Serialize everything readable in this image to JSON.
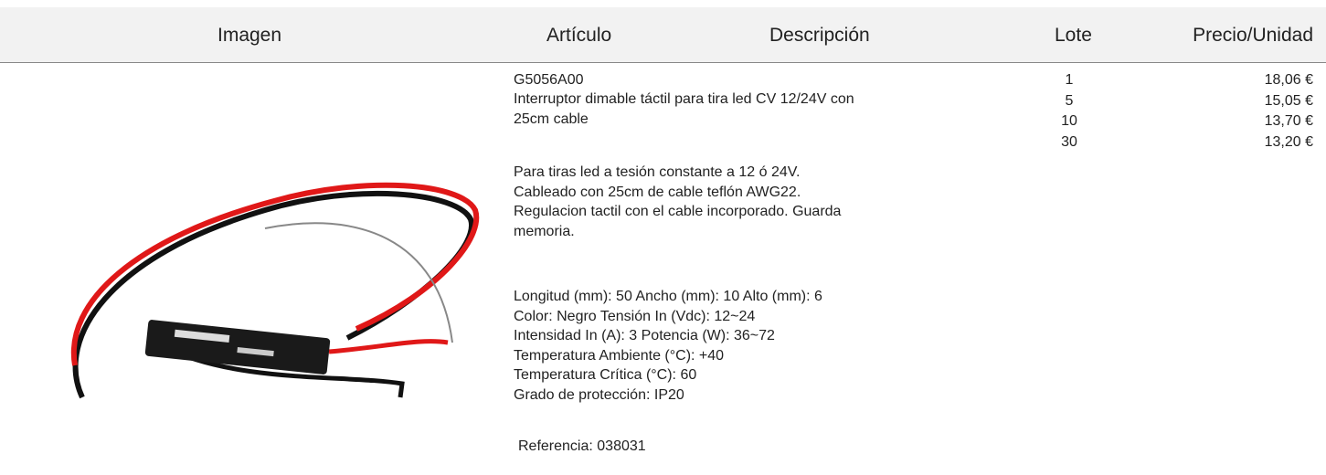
{
  "table": {
    "headers": [
      "Imagen",
      "Artículo",
      "Descripción",
      "Lote",
      "Precio/Unidad"
    ],
    "row": {
      "code": "G5056A00",
      "title": [
        "Interruptor dimable táctil para tira led CV 12/24V con",
        "25cm cable"
      ],
      "description": [
        "Para tiras led a tesión constante a 12 ó 24V.",
        "Cableado con 25cm de cable teflón AWG22.",
        "Regulacion tactil con el cable incorporado. Guarda",
        "memoria."
      ],
      "specs": [
        "Longitud (mm): 50 Ancho (mm): 10 Alto (mm): 6",
        "Color: Negro Tensión In (Vdc): 12~24",
        "Intensidad In (A): 3 Potencia (W): 36~72",
        "Temperatura Ambiente (°C): +40",
        "Temperatura Crítica (°C): 60",
        "Grado de protección: IP20"
      ],
      "reference": "Referencia: 038031",
      "lots": [
        {
          "lote": "1",
          "precio": "18,06 €"
        },
        {
          "lote": "5",
          "precio": "15,05 €"
        },
        {
          "lote": "10",
          "precio": "13,70 €"
        },
        {
          "lote": "30",
          "precio": "13,20 €"
        }
      ]
    }
  }
}
